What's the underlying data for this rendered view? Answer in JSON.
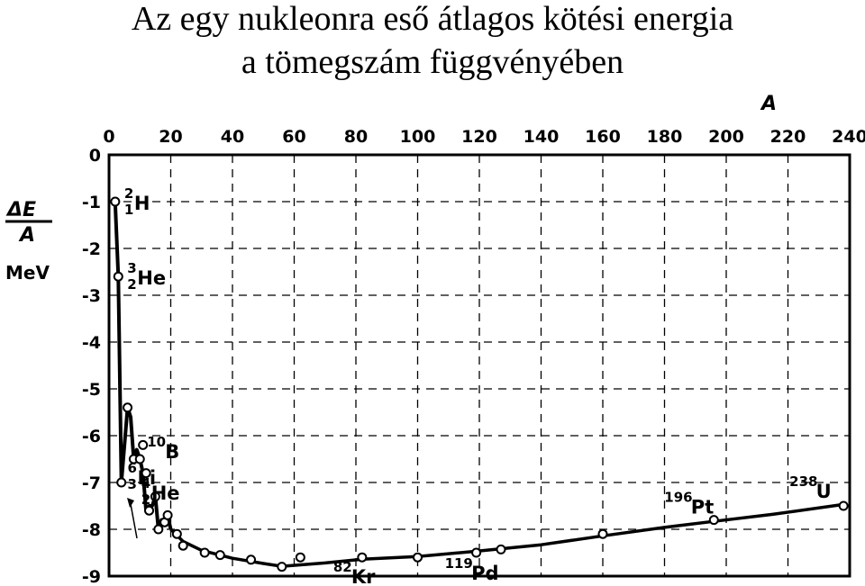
{
  "title_line1": "Az egy nukleonra eső átlagos kötési energia",
  "title_line2": "a tömegszám függvényében",
  "chart_data": {
    "type": "line",
    "xlabel": "A",
    "ylabel_top": "ΔE",
    "ylabel_bottom": "A",
    "yunit": "MeV",
    "xlim": [
      0,
      240
    ],
    "ylim": [
      -9,
      0
    ],
    "x_ticks": [
      0,
      20,
      40,
      60,
      80,
      100,
      120,
      140,
      160,
      180,
      200,
      220,
      240
    ],
    "y_ticks": [
      0,
      -1,
      -2,
      -3,
      -4,
      -5,
      -6,
      -7,
      -8,
      -9
    ],
    "x_tick_labels": [
      "0",
      "20",
      "40",
      "60",
      "80",
      "100",
      "120",
      "140",
      "160",
      "180",
      "200",
      "220",
      "240"
    ],
    "y_tick_labels": [
      "0",
      "-1",
      "-2",
      "-3",
      "-4",
      "-5",
      "-6",
      "-7",
      "-8",
      "-9"
    ],
    "grid": "dashed",
    "zigzag": [
      [
        2,
        -1.0
      ],
      [
        3,
        -2.6
      ],
      [
        4,
        -7.0
      ],
      [
        6,
        -5.4
      ],
      [
        7,
        -5.6
      ],
      [
        8,
        -6.5
      ],
      [
        9,
        -6.3
      ],
      [
        10,
        -6.5
      ],
      [
        11,
        -6.8
      ],
      [
        12,
        -7.6
      ],
      [
        13,
        -7.5
      ],
      [
        14,
        -7.5
      ],
      [
        15,
        -7.3
      ],
      [
        16,
        -8.0
      ],
      [
        17,
        -7.8
      ],
      [
        18,
        -7.8
      ],
      [
        19,
        -7.7
      ],
      [
        20,
        -8.0
      ]
    ],
    "curve": [
      [
        20,
        -8.0
      ],
      [
        24,
        -8.26
      ],
      [
        30,
        -8.45
      ],
      [
        40,
        -8.62
      ],
      [
        50,
        -8.73
      ],
      [
        56,
        -8.79
      ],
      [
        70,
        -8.72
      ],
      [
        82,
        -8.64
      ],
      [
        100,
        -8.58
      ],
      [
        119,
        -8.47
      ],
      [
        140,
        -8.33
      ],
      [
        160,
        -8.14
      ],
      [
        180,
        -7.96
      ],
      [
        196,
        -7.83
      ],
      [
        215,
        -7.68
      ],
      [
        238,
        -7.47
      ]
    ],
    "points": [
      [
        2,
        -1.0
      ],
      [
        3,
        -2.6
      ],
      [
        4,
        -7.0
      ],
      [
        6,
        -5.4
      ],
      [
        8,
        -6.5
      ],
      [
        10,
        -6.5
      ],
      [
        11,
        -6.2
      ],
      [
        12,
        -6.8
      ],
      [
        13,
        -7.6
      ],
      [
        15,
        -7.3
      ],
      [
        16,
        -8.0
      ],
      [
        18,
        -7.85
      ],
      [
        19,
        -7.7
      ],
      [
        22,
        -8.1
      ],
      [
        24,
        -8.35
      ],
      [
        31,
        -8.5
      ],
      [
        36,
        -8.55
      ],
      [
        46,
        -8.65
      ],
      [
        56,
        -8.8
      ],
      [
        62,
        -8.6
      ],
      [
        82,
        -8.6
      ],
      [
        100,
        -8.6
      ],
      [
        119,
        -8.5
      ],
      [
        127,
        -8.43
      ],
      [
        160,
        -8.1
      ],
      [
        196,
        -7.8
      ],
      [
        238,
        -7.5
      ]
    ],
    "annotations": [
      {
        "sup": "2",
        "sub": "1",
        "sym": "H",
        "x": 2,
        "y": -1.0
      },
      {
        "sup": "3",
        "sub": "2",
        "sym": "He",
        "x": 3,
        "y": -2.6
      },
      {
        "sup": "6",
        "sub": "3",
        "sym": "Li",
        "x": 6,
        "y": -5.4
      },
      {
        "sup": "10",
        "sub": "",
        "sym": "B",
        "x": 10,
        "y": -6.5
      },
      {
        "sup": "4",
        "sub": "2",
        "sym": "He",
        "x": 4,
        "y": -7.0
      },
      {
        "sup": "82",
        "sub": "",
        "sym": "Kr",
        "x": 82,
        "y": -8.6
      },
      {
        "sup": "119",
        "sub": "",
        "sym": "Pd",
        "x": 119,
        "y": -8.5
      },
      {
        "sup": "196",
        "sub": "",
        "sym": "Pt",
        "x": 196,
        "y": -7.8
      },
      {
        "sup": "238",
        "sub": "",
        "sym": "U",
        "x": 238,
        "y": -7.5
      }
    ]
  }
}
